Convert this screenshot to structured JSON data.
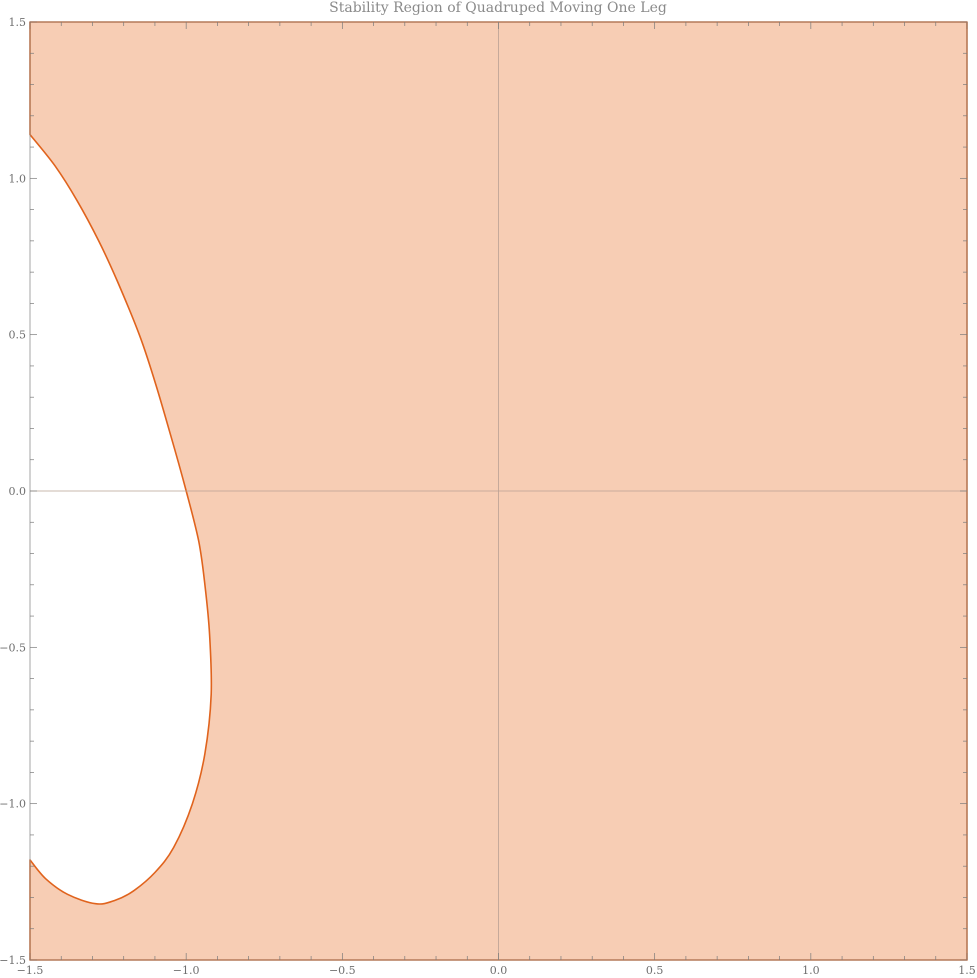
{
  "chart_data": {
    "type": "area",
    "title": "Stability Region of Quadruped Moving One Leg",
    "xlabel": "",
    "ylabel": "",
    "xlim": [
      -1.5,
      1.5
    ],
    "ylim": [
      -1.5,
      1.5
    ],
    "x_ticks": [
      -1.5,
      -1.0,
      -0.5,
      0.0,
      0.5,
      1.0,
      1.5
    ],
    "x_tick_labels": [
      "−1.5",
      "−1.0",
      "−0.5",
      "0.0",
      "0.5",
      "1.0",
      "1.5"
    ],
    "y_ticks": [
      -1.5,
      -1.0,
      -0.5,
      0.0,
      0.5,
      1.0,
      1.5
    ],
    "y_tick_labels": [
      "−1.5",
      "−1.0",
      "−0.5",
      "0.0",
      "0.5",
      "1.0",
      "1.5"
    ],
    "grid": false,
    "axes_through_origin": true,
    "fill_color": "#f7cdb4",
    "boundary_color": "#e0631d",
    "region_boundary": [
      [
        -1.5,
        1.5
      ],
      [
        1.5,
        1.5
      ],
      [
        1.5,
        -1.5
      ],
      [
        -1.5,
        -1.5
      ],
      [
        -1.5,
        -1.18
      ],
      [
        -1.45,
        -1.24
      ],
      [
        -1.38,
        -1.29
      ],
      [
        -1.29,
        -1.32
      ],
      [
        -1.23,
        -1.31
      ],
      [
        -1.17,
        -1.28
      ],
      [
        -1.1,
        -1.22
      ],
      [
        -1.04,
        -1.14
      ],
      [
        -0.98,
        -1.0
      ],
      [
        -0.94,
        -0.84
      ],
      [
        -0.92,
        -0.65
      ],
      [
        -0.925,
        -0.46
      ],
      [
        -0.94,
        -0.3
      ],
      [
        -0.96,
        -0.16
      ],
      [
        -1.0,
        0.0
      ],
      [
        -1.05,
        0.18
      ],
      [
        -1.1,
        0.35
      ],
      [
        -1.15,
        0.5
      ],
      [
        -1.22,
        0.67
      ],
      [
        -1.28,
        0.8
      ],
      [
        -1.35,
        0.93
      ],
      [
        -1.42,
        1.04
      ],
      [
        -1.5,
        1.14
      ]
    ]
  }
}
